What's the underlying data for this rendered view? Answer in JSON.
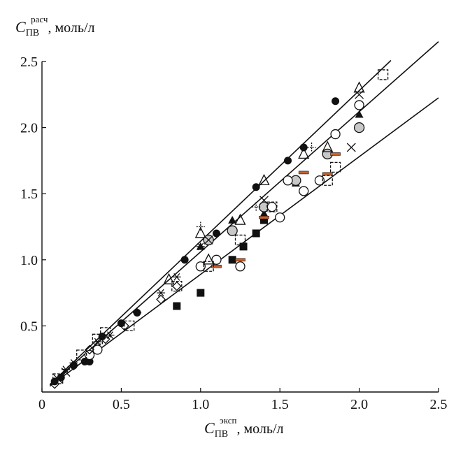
{
  "axis_labels": {
    "y": {
      "var": "C",
      "sub": "ПВ",
      "sup": "расч",
      "unit": ", моль/л"
    },
    "x": {
      "var": "C",
      "sub": "ПВ",
      "sup": "эксп",
      "unit": ", моль/л"
    }
  },
  "chart_data": {
    "type": "scatter",
    "title": "",
    "xlabel": "C ПВ эксп, моль/л",
    "ylabel": "C ПВ расч, моль/л",
    "xlim": [
      0,
      2.5
    ],
    "ylim": [
      0,
      2.5
    ],
    "xticks": [
      "0",
      "0.5",
      "1.0",
      "1.5",
      "2.0",
      "2.5"
    ],
    "yticks": [
      "0.5",
      "1.0",
      "1.5",
      "2.0",
      "2.5"
    ],
    "grid": false,
    "lines": [
      {
        "slope": 1.14,
        "x_range": [
          0.05,
          2.2
        ]
      },
      {
        "slope": 1.06,
        "x_range": [
          0.05,
          2.5
        ]
      },
      {
        "slope": 0.89,
        "x_range": [
          0.05,
          2.5
        ]
      }
    ],
    "series": [
      {
        "marker": "filled-circle",
        "points": [
          [
            0.08,
            0.08
          ],
          [
            0.12,
            0.11
          ],
          [
            0.2,
            0.2
          ],
          [
            0.27,
            0.23
          ],
          [
            0.3,
            0.23
          ],
          [
            0.38,
            0.42
          ],
          [
            0.5,
            0.52
          ],
          [
            0.6,
            0.6
          ],
          [
            0.9,
            1.0
          ],
          [
            1.1,
            1.2
          ],
          [
            1.35,
            1.55
          ],
          [
            1.55,
            1.75
          ],
          [
            1.65,
            1.85
          ],
          [
            1.85,
            2.2
          ]
        ]
      },
      {
        "marker": "filled-triangle",
        "points": [
          [
            1.0,
            1.1
          ],
          [
            1.2,
            1.3
          ],
          [
            1.4,
            1.35
          ],
          [
            1.6,
            1.58
          ],
          [
            2.0,
            2.1
          ]
        ]
      },
      {
        "marker": "filled-square",
        "points": [
          [
            0.85,
            0.65
          ],
          [
            1.0,
            0.75
          ],
          [
            1.2,
            1.0
          ],
          [
            1.27,
            1.1
          ],
          [
            1.35,
            1.2
          ],
          [
            1.4,
            1.3
          ]
        ]
      },
      {
        "marker": "gray-circle",
        "points": [
          [
            1.05,
            1.15
          ],
          [
            1.2,
            1.22
          ],
          [
            1.4,
            1.4
          ],
          [
            1.6,
            1.6
          ],
          [
            1.8,
            1.8
          ],
          [
            2.0,
            2.0
          ]
        ]
      },
      {
        "marker": "open-circle",
        "points": [
          [
            0.3,
            0.28
          ],
          [
            0.35,
            0.32
          ],
          [
            1.0,
            0.95
          ],
          [
            1.1,
            1.0
          ],
          [
            1.25,
            0.95
          ],
          [
            1.45,
            1.4
          ],
          [
            1.5,
            1.32
          ],
          [
            1.55,
            1.6
          ],
          [
            1.65,
            1.52
          ],
          [
            1.75,
            1.6
          ],
          [
            1.85,
            1.95
          ],
          [
            2.0,
            2.17
          ]
        ]
      },
      {
        "marker": "open-triangle",
        "points": [
          [
            0.8,
            0.85
          ],
          [
            1.0,
            1.2
          ],
          [
            1.05,
            1.0
          ],
          [
            1.25,
            1.3
          ],
          [
            1.4,
            1.6
          ],
          [
            1.65,
            1.8
          ],
          [
            1.8,
            1.85
          ],
          [
            2.0,
            2.3
          ]
        ]
      },
      {
        "marker": "cross",
        "points": [
          [
            0.1,
            0.1
          ],
          [
            0.15,
            0.15
          ],
          [
            1.05,
            1.15
          ],
          [
            1.4,
            1.45
          ],
          [
            1.95,
            1.85
          ],
          [
            2.0,
            2.25
          ]
        ]
      },
      {
        "marker": "asterisk",
        "points": [
          [
            0.15,
            0.17
          ],
          [
            0.2,
            0.22
          ],
          [
            0.35,
            0.38
          ],
          [
            0.43,
            0.43
          ],
          [
            0.75,
            0.75
          ],
          [
            0.85,
            0.87
          ],
          [
            1.0,
            1.1
          ]
        ]
      },
      {
        "marker": "plus",
        "points": [
          [
            0.6,
            0.6
          ],
          [
            1.0,
            1.25
          ],
          [
            1.35,
            1.4
          ],
          [
            1.7,
            1.85
          ]
        ]
      },
      {
        "marker": "dash-orange",
        "points": [
          [
            1.1,
            0.95
          ],
          [
            1.25,
            1.0
          ],
          [
            1.4,
            1.32
          ],
          [
            1.65,
            1.66
          ],
          [
            1.8,
            1.65
          ],
          [
            1.85,
            1.8
          ]
        ]
      },
      {
        "marker": "open-square",
        "points": [
          [
            0.1,
            0.1
          ],
          [
            0.25,
            0.28
          ],
          [
            0.35,
            0.4
          ],
          [
            0.4,
            0.45
          ],
          [
            0.55,
            0.5
          ],
          [
            0.85,
            0.8
          ],
          [
            1.05,
            0.95
          ],
          [
            1.25,
            1.15
          ],
          [
            1.45,
            1.4
          ],
          [
            1.8,
            1.6
          ],
          [
            1.85,
            1.7
          ],
          [
            2.15,
            2.4
          ]
        ]
      },
      {
        "marker": "open-diamond",
        "points": [
          [
            0.08,
            0.06
          ],
          [
            0.2,
            0.2
          ],
          [
            0.3,
            0.32
          ],
          [
            0.4,
            0.4
          ],
          [
            0.52,
            0.5
          ],
          [
            0.75,
            0.7
          ],
          [
            0.85,
            0.8
          ]
        ]
      }
    ]
  },
  "colors": {
    "ink": "#111111",
    "gray_fill": "#c8c8c8",
    "orange": "#c8612e"
  }
}
